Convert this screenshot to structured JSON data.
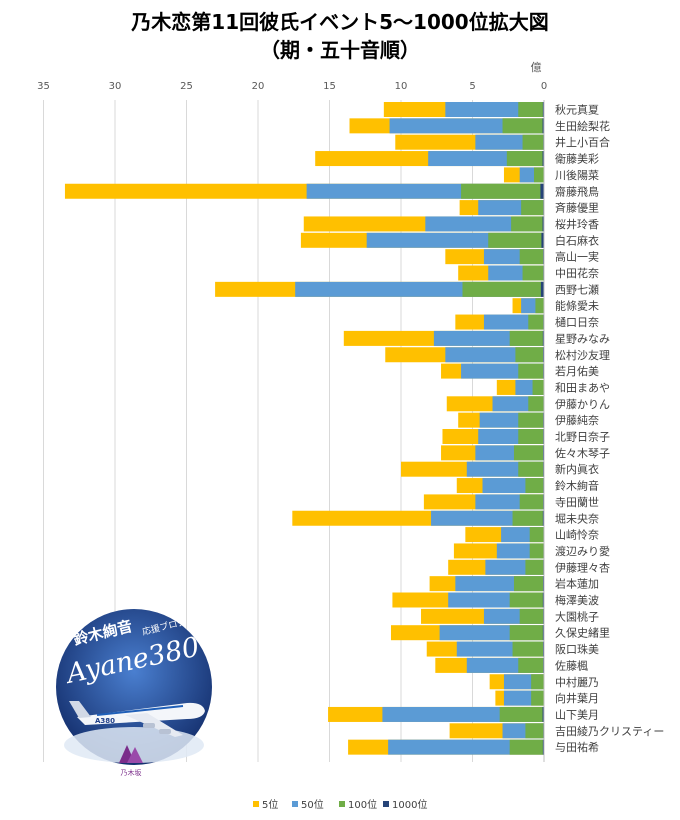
{
  "title": {
    "line1": "乃木恋第11回彼氏イベント5〜1000位拡大図",
    "line2": "（期・五十音順）"
  },
  "colors": {
    "rank5": "#FFC000",
    "rank50": "#5B9BD5",
    "rank100": "#70AD47",
    "rank1000": "#264478"
  },
  "chart_data": {
    "type": "bar",
    "orientation": "horizontal",
    "stacked": false,
    "x_axis_reversed": true,
    "unit": "億",
    "xlim": [
      0,
      35
    ],
    "x_ticks": [
      0,
      5,
      10,
      15,
      20,
      25,
      30,
      35
    ],
    "grid": true,
    "legend_position": "bottom",
    "categories": [
      "秋元真夏",
      "生田絵梨花",
      "井上小百合",
      "衛藤美彩",
      "川後陽菜",
      "齋藤飛鳥",
      "斉藤優里",
      "桜井玲香",
      "白石麻衣",
      "高山一実",
      "中田花奈",
      "西野七瀬",
      "能條愛未",
      "樋口日奈",
      "星野みなみ",
      "松村沙友理",
      "若月佑美",
      "和田まあや",
      "伊藤かりん",
      "伊藤純奈",
      "北野日奈子",
      "佐々木琴子",
      "新内眞衣",
      "鈴木絢音",
      "寺田蘭世",
      "堀未央奈",
      "山崎怜奈",
      "渡辺みり愛",
      "伊藤理々杏",
      "岩本蓮加",
      "梅澤美波",
      "大園桃子",
      "久保史緒里",
      "阪口珠美",
      "佐藤楓",
      "中村麗乃",
      "向井葉月",
      "山下美月",
      "吉田綾乃クリスティー",
      "与田祐希"
    ],
    "series": [
      {
        "name": "5位",
        "values": [
          11.2,
          13.6,
          10.4,
          16.0,
          2.8,
          33.5,
          5.9,
          16.8,
          17.0,
          6.9,
          6.0,
          23.0,
          2.2,
          6.2,
          14.0,
          11.1,
          7.2,
          3.3,
          6.8,
          6.0,
          7.1,
          7.2,
          10.0,
          6.1,
          8.4,
          17.6,
          5.5,
          6.3,
          6.7,
          8.0,
          10.6,
          8.6,
          10.7,
          8.2,
          7.6,
          3.8,
          3.4,
          15.1,
          6.6,
          13.7
        ]
      },
      {
        "name": "50位",
        "values": [
          6.9,
          10.8,
          4.8,
          8.1,
          1.7,
          16.6,
          4.6,
          8.3,
          12.4,
          4.2,
          3.9,
          17.4,
          1.6,
          4.2,
          7.7,
          6.9,
          5.8,
          2.0,
          3.6,
          4.5,
          4.6,
          4.8,
          5.4,
          4.3,
          4.8,
          7.9,
          3.0,
          3.3,
          4.1,
          6.2,
          6.7,
          4.2,
          7.3,
          6.1,
          5.4,
          2.8,
          2.8,
          11.3,
          2.9,
          10.9
        ]
      },
      {
        "name": "100位",
        "values": [
          1.8,
          2.9,
          1.5,
          2.6,
          0.7,
          5.8,
          1.6,
          2.3,
          3.9,
          1.7,
          1.5,
          5.7,
          0.6,
          1.1,
          2.4,
          2.0,
          1.8,
          0.8,
          1.1,
          1.8,
          1.8,
          2.1,
          1.8,
          1.3,
          1.7,
          2.2,
          1.0,
          1.0,
          1.3,
          2.1,
          2.4,
          1.7,
          2.4,
          2.2,
          1.8,
          0.9,
          0.9,
          3.1,
          1.3,
          2.4
        ]
      },
      {
        "name": "1000位",
        "values": [
          0.08,
          0.1,
          0.05,
          0.1,
          0.03,
          0.25,
          0.05,
          0.1,
          0.18,
          0.06,
          0.05,
          0.22,
          0.03,
          0.05,
          0.08,
          0.07,
          0.06,
          0.03,
          0.04,
          0.06,
          0.06,
          0.07,
          0.06,
          0.05,
          0.06,
          0.08,
          0.04,
          0.04,
          0.05,
          0.07,
          0.08,
          0.06,
          0.08,
          0.07,
          0.06,
          0.03,
          0.03,
          0.1,
          0.05,
          0.08
        ]
      }
    ]
  },
  "logo": {
    "line1": "鈴木絢音",
    "line1_small": "応援ブログ",
    "line2": "Ayane380",
    "plane_text": "A380",
    "badge_text": "乃木坂"
  }
}
